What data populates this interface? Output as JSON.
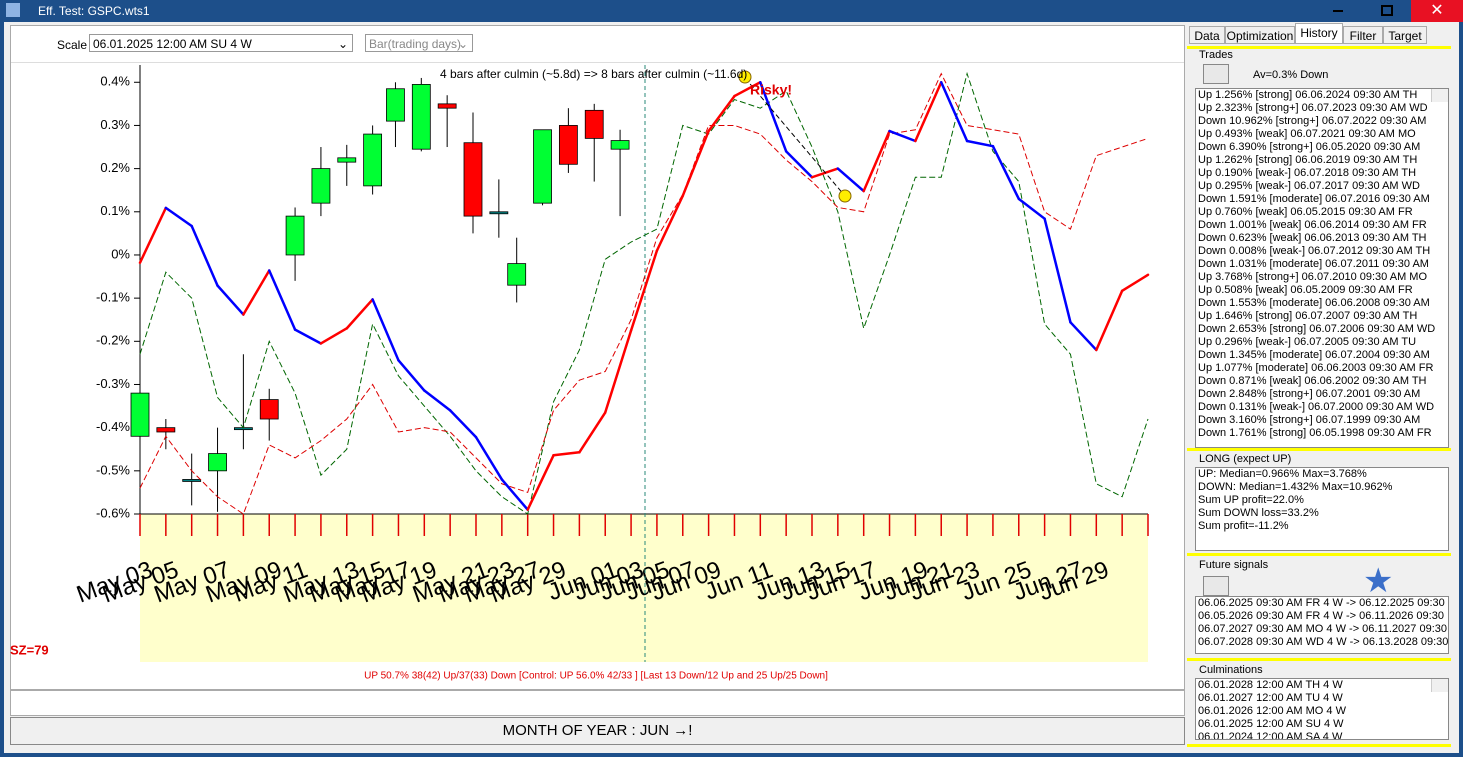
{
  "window": {
    "title": "Eff. Test: GSPC.wts1"
  },
  "toolbar": {
    "scale_label": "Scale",
    "scale_value": "06.01.2025  12:00 AM SU  4 W",
    "mode": "Bar(trading days)"
  },
  "chart_data": {
    "type": "candlestick",
    "annotation": "4 bars after culmin (~5.8d) => 8 bars after culmin (~11.6d)",
    "warning": "Risky!",
    "size_label": "SZ=79",
    "stats": "UP 50.7%  38(42) Up/37(33) Down [Control: UP 56.0%  42/33 ] [Last 13 Down/12 Up and 25 Up/25 Down]",
    "ylim": [
      -0.6,
      0.44
    ],
    "yticks": [
      {
        "value": 0.4,
        "label": "0.4%"
      },
      {
        "value": 0.3,
        "label": "0.3%"
      },
      {
        "value": 0.2,
        "label": "0.2%"
      },
      {
        "value": 0.1,
        "label": "0.1%"
      },
      {
        "value": 0,
        "label": "0%"
      },
      {
        "value": -0.1,
        "label": "-0.1%"
      },
      {
        "value": -0.2,
        "label": "-0.2%"
      },
      {
        "value": -0.3,
        "label": "-0.3%"
      },
      {
        "value": -0.4,
        "label": "-0.4%"
      },
      {
        "value": -0.5,
        "label": "-0.5%"
      },
      {
        "value": -0.6,
        "label": "-0.6%"
      }
    ],
    "categories": [
      "May 03",
      "May 05",
      null,
      "May 07",
      null,
      "May 09",
      "May 11",
      null,
      "May 13",
      "May 15",
      "May 17",
      "May 19",
      null,
      "May 21",
      "May 23",
      "May 27",
      "May 29",
      null,
      "Jun 01",
      "Jun 03",
      "Jun 05",
      "Jun 07",
      "Jun 09",
      null,
      "Jun 11",
      null,
      "Jun 13",
      "Jun 15",
      "Jun 17",
      null,
      "Jun 19",
      "Jun 21",
      "Jun 23",
      null,
      "Jun 25",
      null,
      "Jun 27",
      "Jun 29",
      null,
      null
    ],
    "up_color": "#00ff33",
    "down_color": "#ff0000",
    "candles": {
      "open": [
        -0.42,
        -0.4,
        -0.52,
        -0.5,
        -0.4,
        -0.335,
        -0.0,
        0.12,
        0.215,
        0.16,
        0.31,
        0.245,
        0.35,
        0.26,
        0.1,
        -0.07,
        0.12,
        0.3,
        0.335,
        0.245
      ],
      "high": [
        -0.28,
        -0.38,
        -0.46,
        -0.4,
        -0.23,
        -0.31,
        0.11,
        0.25,
        0.255,
        0.3,
        0.4,
        0.41,
        0.37,
        0.33,
        0.175,
        0.04,
        0.29,
        0.34,
        0.35,
        0.29
      ],
      "low": [
        -0.45,
        -0.45,
        -0.58,
        -0.595,
        -0.45,
        -0.43,
        -0.06,
        0.09,
        0.16,
        0.14,
        0.25,
        0.24,
        0.25,
        0.05,
        0.04,
        -0.11,
        0.115,
        0.19,
        0.17,
        0.09
      ],
      "close": [
        -0.32,
        -0.41,
        -0.52,
        -0.46,
        -0.4,
        -0.38,
        0.09,
        0.2,
        0.225,
        0.28,
        0.385,
        0.395,
        0.34,
        0.09,
        0.1,
        -0.02,
        0.29,
        0.21,
        0.27,
        0.265
      ]
    },
    "series": [
      {
        "name": "Forecast",
        "color": "#0000ff",
        "style": "segments",
        "values": [
          -0.018,
          0.109,
          0.067,
          -0.071,
          -0.138,
          -0.036,
          -0.173,
          -0.205,
          -0.17,
          -0.103,
          -0.244,
          -0.314,
          -0.36,
          -0.422,
          -0.52,
          -0.59,
          -0.464,
          -0.457,
          -0.365,
          -0.175,
          0.01,
          0.137,
          0.287,
          0.368,
          0.4,
          0.24,
          0.18,
          0.2,
          0.148,
          0.287,
          0.264,
          0.4,
          0.264,
          0.252,
          0.13,
          0.084,
          -0.156,
          -0.22,
          -0.083,
          -0.046
        ]
      },
      {
        "name": "Control",
        "color": "#006600",
        "style": "dashed",
        "values": [
          -0.23,
          -0.04,
          -0.1,
          -0.33,
          -0.4,
          -0.2,
          -0.32,
          -0.51,
          -0.45,
          -0.16,
          -0.28,
          -0.35,
          -0.42,
          -0.5,
          -0.56,
          -0.6,
          -0.34,
          -0.22,
          -0.01,
          0.03,
          0.06,
          0.3,
          0.28,
          0.36,
          0.34,
          0.38,
          0.25,
          0.1,
          -0.17,
          0.0,
          0.18,
          0.18,
          0.42,
          0.24,
          0.17,
          -0.16,
          -0.23,
          -0.53,
          -0.56,
          -0.38
        ]
      },
      {
        "name": "Alternative",
        "color": "#dd0000",
        "style": "dashed",
        "values": [
          -0.54,
          -0.42,
          -0.5,
          -0.56,
          -0.6,
          -0.44,
          -0.47,
          -0.43,
          -0.38,
          -0.3,
          -0.41,
          -0.4,
          -0.41,
          -0.47,
          -0.53,
          -0.55,
          -0.36,
          -0.29,
          -0.27,
          -0.15,
          0.04,
          0.14,
          0.3,
          0.3,
          0.28,
          0.22,
          0.17,
          0.11,
          0.1,
          0.28,
          0.29,
          0.42,
          0.3,
          0.29,
          0.28,
          0.1,
          0.06,
          0.23,
          0.25,
          0.27
        ]
      }
    ]
  },
  "status": {
    "month": "MONTH OF YEAR : JUN →!"
  },
  "tabs": [
    "Data",
    "Optimization",
    "History",
    "Filter",
    "Target"
  ],
  "trades": {
    "title": "Trades",
    "average": "Av=0.3% Down",
    "rows": [
      "Up 1.256% [strong]  06.06.2024  09:30 AM TH",
      "Up 2.323% [strong+]  06.07.2023  09:30 AM WD",
      "Down 10.962% [strong+]  06.07.2022  09:30 AM",
      "Up 0.493% [weak]  06.07.2021  09:30 AM MO",
      "Down 6.390% [strong+]  06.05.2020  09:30 AM",
      "Up 1.262% [strong]  06.06.2019  09:30 AM TH",
      "Up 0.190% [weak-]  06.07.2018  09:30 AM TH",
      "Up 0.295% [weak-]  06.07.2017  09:30 AM WD",
      "Down 1.591% [moderate]  06.07.2016  09:30 AM",
      "Up 0.760% [weak]  06.05.2015  09:30 AM FR",
      "Down 1.001% [weak]  06.06.2014  09:30 AM FR",
      "Down 0.623% [weak]  06.06.2013  09:30 AM TH",
      "Down 0.008% [weak-]  06.07.2012  09:30 AM TH",
      "Down 1.031% [moderate]  06.07.2011  09:30 AM",
      "Up 3.768% [strong+]  06.07.2010  09:30 AM MO",
      "Up 0.508% [weak]  06.05.2009  09:30 AM FR",
      "Down 1.553% [moderate]  06.06.2008  09:30 AM",
      "Up 1.646% [strong]  06.07.2007  09:30 AM TH",
      "Down 2.653% [strong]  06.07.2006  09:30 AM WD",
      "Up 0.296% [weak-]  06.07.2005  09:30 AM TU",
      "Down 1.345% [moderate]  06.07.2004  09:30 AM",
      "Up 1.077% [moderate]  06.06.2003  09:30 AM FR",
      "Down 0.871% [weak]  06.06.2002  09:30 AM TH",
      "Down 2.848% [strong+]  06.07.2001  09:30 AM",
      "Down 0.131% [weak-]  06.07.2000  09:30 AM WD",
      "Down 3.160% [strong+]  06.07.1999  09:30 AM",
      "Down 1.761% [strong]  06.05.1998  09:30 AM FR"
    ]
  },
  "long": {
    "title": "LONG (expect UP)",
    "lines": [
      "UP: Median=0.966%  Max=3.768%",
      "DOWN: Median=1.432%  Max=10.962%",
      "Sum UP profit=22.0%",
      "Sum DOWN loss=33.2%",
      "Sum profit=-11.2%"
    ]
  },
  "future": {
    "title": "Future signals",
    "rows": [
      "06.06.2025  09:30 AM FR  4 W -> 06.12.2025  09:30",
      "06.05.2026  09:30 AM FR  4 W -> 06.11.2026  09:30",
      "06.07.2027  09:30 AM MO  4 W -> 06.11.2027  09:30",
      "06.07.2028  09:30 AM WD  4 W -> 06.13.2028  09:30"
    ]
  },
  "culminations": {
    "title": "Culminations",
    "rows": [
      "06.01.2028  12:00 AM TH  4 W",
      "06.01.2027  12:00 AM TU  4 W",
      "06.01.2026  12:00 AM MO  4 W",
      "06.01.2025  12:00 AM SU  4 W",
      "06.01.2024  12:00 AM SA  4 W"
    ]
  }
}
